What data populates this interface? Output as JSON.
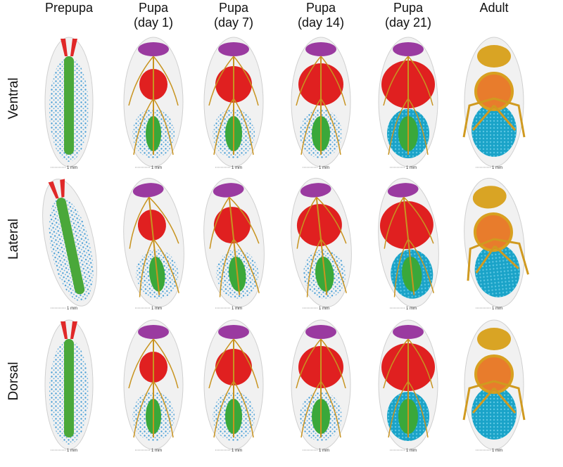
{
  "columns": [
    [
      "Prepupa"
    ],
    [
      "Pupa",
      "(day 1)"
    ],
    [
      "Pupa",
      "(day 7)"
    ],
    [
      "Pupa",
      "(day 14)"
    ],
    [
      "Pupa",
      "(day 21)"
    ],
    [
      "Adult"
    ]
  ],
  "rows": [
    "Ventral",
    "Lateral",
    "Dorsal"
  ],
  "scale_label": "1 mm"
}
